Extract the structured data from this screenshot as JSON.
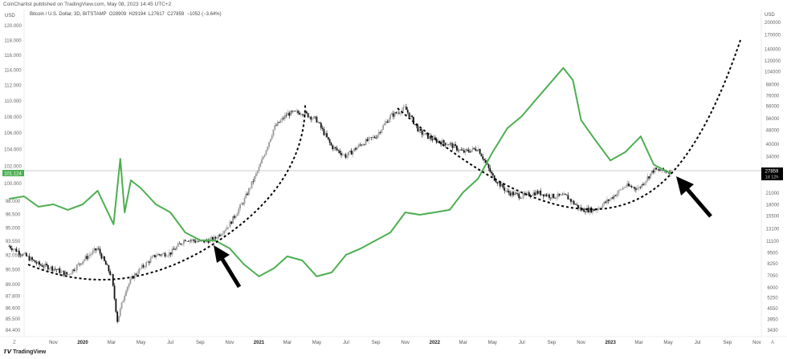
{
  "header": {
    "published": "CoinChartist published on TradingView.com, May 08, 2023 14:45 UTC+2",
    "symbol": "Bitcoin / U.S. Dollar, 3D, BITSTAMP",
    "ohlc": "O28909  H29194  L27617  C27859  −1052 (−3.64%)",
    "left_currency": "USD",
    "right_currency": "USD"
  },
  "footer": {
    "logo_text": "TradingView",
    "left_button": "Z",
    "right_button": "A"
  },
  "colors": {
    "dxy_line": "#4caf50",
    "candle_up": "#9a9a9a",
    "candle_down": "#111111",
    "price_tag_left": "#4caf50",
    "price_tag_right": "#000000",
    "curve": "#000000"
  },
  "chart_data": {
    "type": "line",
    "title": "",
    "grid": false,
    "left_axis": {
      "scale": "log",
      "ticks": [
        "120.000",
        "118.000",
        "116.000",
        "114.000",
        "112.000",
        "110.000",
        "108.000",
        "106.000",
        "104.000",
        "102.000",
        "100.000",
        "98.000",
        "96.500",
        "95.000",
        "93.550",
        "92.050",
        "90.500",
        "89.000",
        "87.800",
        "86.600",
        "85.500",
        "84.400"
      ],
      "last_value_tag": "101.124"
    },
    "right_axis": {
      "scale": "log",
      "ticks": [
        "200000",
        "170000",
        "140000",
        "120000",
        "104000",
        "88000",
        "76000",
        "66000",
        "56000",
        "48000",
        "40000",
        "34000",
        "21000",
        "18000",
        "15500",
        "13100",
        "11100",
        "9500",
        "8250",
        "7050",
        "6000",
        "5250",
        "4550",
        "3950",
        "3430"
      ],
      "last_value_tag": "27859",
      "countdown": "1d 12h"
    },
    "x_axis": {
      "ticks": [
        {
          "label": "Nov",
          "date": "2019-11-01"
        },
        {
          "label": "2020",
          "date": "2020-01-01",
          "year": true
        },
        {
          "label": "Mar",
          "date": "2020-03-01"
        },
        {
          "label": "May",
          "date": "2020-05-01"
        },
        {
          "label": "Jul",
          "date": "2020-07-01"
        },
        {
          "label": "Sep",
          "date": "2020-09-01"
        },
        {
          "label": "Nov",
          "date": "2020-11-01"
        },
        {
          "label": "2021",
          "date": "2021-01-01",
          "year": true
        },
        {
          "label": "Mar",
          "date": "2021-03-01"
        },
        {
          "label": "May",
          "date": "2021-05-01"
        },
        {
          "label": "Jul",
          "date": "2021-07-01"
        },
        {
          "label": "Sep",
          "date": "2021-09-01"
        },
        {
          "label": "Nov",
          "date": "2021-11-01"
        },
        {
          "label": "2022",
          "date": "2022-01-01",
          "year": true
        },
        {
          "label": "Mar",
          "date": "2022-03-01"
        },
        {
          "label": "May",
          "date": "2022-05-01"
        },
        {
          "label": "Jul",
          "date": "2022-07-01"
        },
        {
          "label": "Sep",
          "date": "2022-09-01"
        },
        {
          "label": "Nov",
          "date": "2022-11-01"
        },
        {
          "label": "2023",
          "date": "2023-01-01",
          "year": true
        },
        {
          "label": "Mar",
          "date": "2023-03-01"
        },
        {
          "label": "May",
          "date": "2023-05-01"
        },
        {
          "label": "Jul",
          "date": "2023-07-01"
        },
        {
          "label": "Sep",
          "date": "2023-09-01"
        },
        {
          "label": "Nov",
          "date": "2023-11-01"
        }
      ]
    },
    "series": [
      {
        "kind": "candlestick",
        "axis": "right",
        "points": [
          [
            "2019-08-01",
            10400
          ],
          [
            "2019-09-01",
            9260
          ],
          [
            "2019-10-01",
            8170
          ],
          [
            "2019-11-01",
            7750
          ],
          [
            "2019-12-01",
            7120
          ],
          [
            "2020-01-01",
            8610
          ],
          [
            "2020-02-01",
            10100
          ],
          [
            "2020-03-01",
            6970
          ],
          [
            "2020-03-13",
            3890
          ],
          [
            "2020-03-31",
            5940
          ],
          [
            "2020-04-15",
            6970
          ],
          [
            "2020-05-01",
            7750
          ],
          [
            "2020-06-01",
            9260
          ],
          [
            "2020-07-01",
            9470
          ],
          [
            "2020-08-01",
            11430
          ],
          [
            "2020-09-01",
            10990
          ],
          [
            "2020-10-01",
            11430
          ],
          [
            "2020-11-01",
            13870
          ],
          [
            "2020-12-01",
            19050
          ],
          [
            "2021-01-01",
            29110
          ],
          [
            "2021-02-01",
            49380
          ],
          [
            "2021-03-01",
            59700
          ],
          [
            "2021-04-01",
            61160
          ],
          [
            "2021-05-01",
            54950
          ],
          [
            "2021-06-01",
            38760
          ],
          [
            "2021-07-01",
            34130
          ],
          [
            "2021-08-01",
            40000
          ],
          [
            "2021-09-01",
            44440
          ],
          [
            "2021-10-01",
            57970
          ],
          [
            "2021-11-01",
            64310
          ],
          [
            "2021-12-01",
            46840
          ],
          [
            "2022-01-01",
            42190
          ],
          [
            "2022-02-01",
            40000
          ],
          [
            "2022-03-01",
            35970
          ],
          [
            "2022-04-01",
            37950
          ],
          [
            "2022-05-01",
            26180
          ],
          [
            "2022-06-01",
            21190
          ],
          [
            "2022-07-01",
            20100
          ],
          [
            "2022-08-01",
            21190
          ],
          [
            "2022-09-01",
            20100
          ],
          [
            "2022-10-01",
            20100
          ],
          [
            "2022-11-01",
            16810
          ],
          [
            "2022-12-01",
            16810
          ],
          [
            "2023-01-01",
            19460
          ],
          [
            "2023-02-01",
            23070
          ],
          [
            "2023-03-01",
            22350
          ],
          [
            "2023-04-01",
            28490
          ],
          [
            "2023-05-08",
            27859
          ]
        ]
      },
      {
        "kind": "line",
        "axis": "left",
        "points": [
          [
            "2019-08-01",
            98.25
          ],
          [
            "2019-09-01",
            98.53
          ],
          [
            "2019-10-01",
            97.35
          ],
          [
            "2019-11-01",
            97.62
          ],
          [
            "2019-12-01",
            97.0
          ],
          [
            "2020-01-01",
            97.62
          ],
          [
            "2020-02-01",
            99.17
          ],
          [
            "2020-03-05",
            95.39
          ],
          [
            "2020-03-19",
            102.9
          ],
          [
            "2020-03-28",
            96.72
          ],
          [
            "2020-04-10",
            100.37
          ],
          [
            "2020-05-01",
            99.45
          ],
          [
            "2020-06-01",
            97.62
          ],
          [
            "2020-07-01",
            96.72
          ],
          [
            "2020-08-01",
            94.5
          ],
          [
            "2020-09-01",
            93.64
          ],
          [
            "2020-10-01",
            93.64
          ],
          [
            "2020-11-01",
            92.78
          ],
          [
            "2020-12-01",
            91.07
          ],
          [
            "2021-01-01",
            89.82
          ],
          [
            "2021-02-01",
            90.65
          ],
          [
            "2021-03-01",
            91.92
          ],
          [
            "2021-04-01",
            91.49
          ],
          [
            "2021-05-01",
            89.82
          ],
          [
            "2021-06-01",
            90.23
          ],
          [
            "2021-07-01",
            92.09
          ],
          [
            "2021-08-01",
            92.78
          ],
          [
            "2021-09-01",
            93.64
          ],
          [
            "2021-10-01",
            94.5
          ],
          [
            "2021-11-01",
            96.72
          ],
          [
            "2021-12-01",
            96.45
          ],
          [
            "2022-01-01",
            96.72
          ],
          [
            "2022-02-01",
            97.0
          ],
          [
            "2022-03-01",
            98.99
          ],
          [
            "2022-04-01",
            100.56
          ],
          [
            "2022-05-01",
            103.68
          ],
          [
            "2022-06-01",
            106.6
          ],
          [
            "2022-07-01",
            108.09
          ],
          [
            "2022-08-01",
            110.31
          ],
          [
            "2022-09-25",
            114.3
          ],
          [
            "2022-10-15",
            112.7
          ],
          [
            "2022-11-01",
            107.6
          ],
          [
            "2022-12-01",
            105.1
          ],
          [
            "2023-01-01",
            102.7
          ],
          [
            "2023-02-01",
            103.7
          ],
          [
            "2023-03-05",
            105.6
          ],
          [
            "2023-04-01",
            102.2
          ],
          [
            "2023-05-08",
            101.124
          ]
        ]
      }
    ],
    "annotations": [
      "dashed-curve",
      "dashed-curve",
      "arrow",
      "arrow"
    ]
  }
}
